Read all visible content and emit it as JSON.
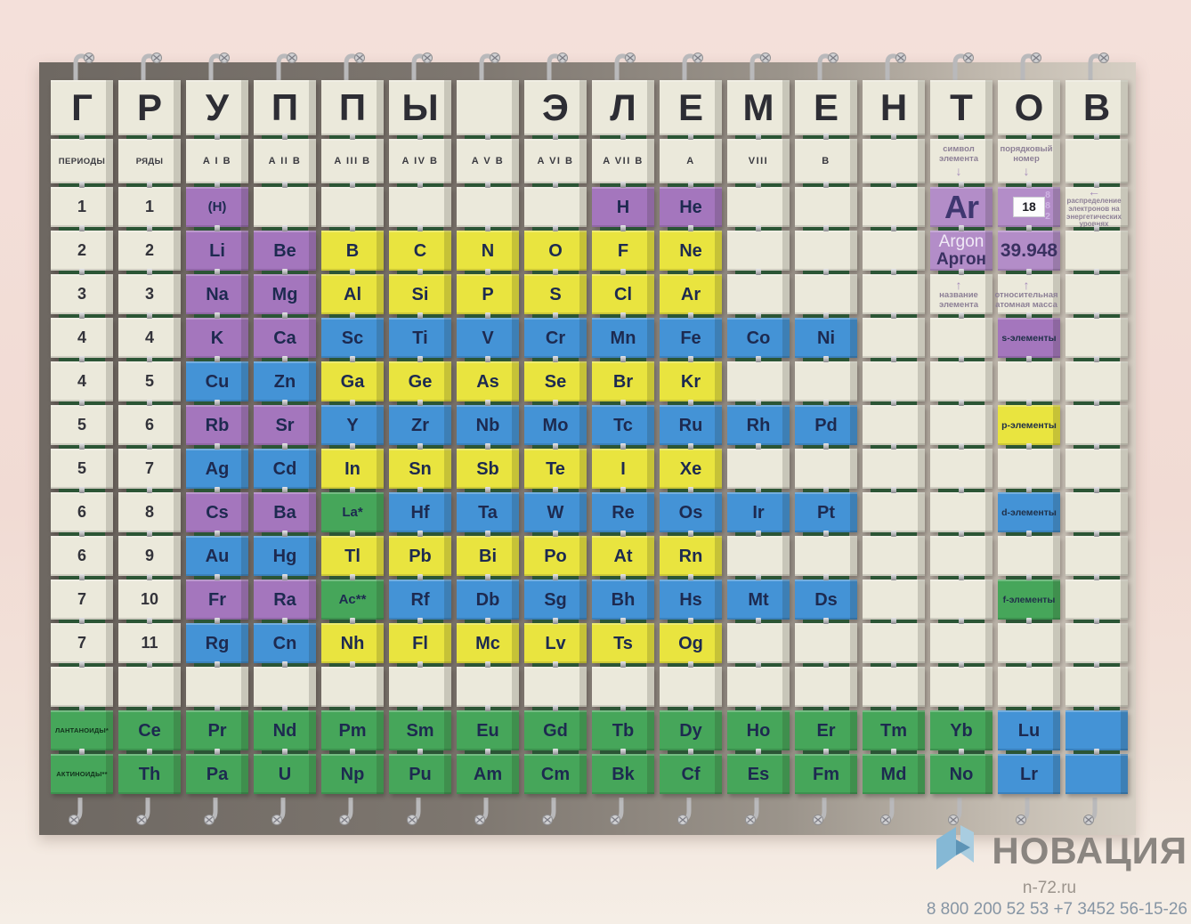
{
  "colors": {
    "c": "#ebe9db",
    "s": "#a476bd",
    "sl": "#b38dc8",
    "p": "#e9e43f",
    "d": "#4493d6",
    "f": "#46a65a"
  },
  "board": {
    "letters": [
      "Г",
      "Р",
      "У",
      "П",
      "П",
      "Ы",
      "",
      "Э",
      "Л",
      "Е",
      "М",
      "Е",
      "Н",
      "Т",
      "О",
      "В"
    ],
    "header_row": [
      [
        "ПЕРИОДЫ",
        "c",
        "hdr"
      ],
      [
        "РЯДЫ",
        "c",
        "hdr"
      ],
      [
        "A I B",
        "c",
        "hdr"
      ],
      [
        "A II B",
        "c",
        "hdr"
      ],
      [
        "A III B",
        "c",
        "hdr"
      ],
      [
        "A IV B",
        "c",
        "hdr"
      ],
      [
        "A V B",
        "c",
        "hdr"
      ],
      [
        "A VI B",
        "c",
        "hdr"
      ],
      [
        "A VII B",
        "c",
        "hdr"
      ],
      [
        "A",
        "c",
        "hdr"
      ],
      [
        "VIII",
        "c",
        "hdr"
      ],
      [
        "B",
        "c",
        "hdr"
      ],
      [
        "",
        "c",
        ""
      ],
      [
        "символ элемента",
        "c",
        "ld"
      ],
      [
        "порядковый номер",
        "c",
        "ld"
      ],
      [
        "",
        "c",
        ""
      ]
    ],
    "rows": [
      [
        [
          "1",
          "c",
          "num"
        ],
        [
          "1",
          "c",
          "num"
        ],
        [
          "(H)",
          "s",
          "sym"
        ],
        [
          "",
          "c",
          ""
        ],
        [
          "",
          "c",
          ""
        ],
        [
          "",
          "c",
          ""
        ],
        [
          "",
          "c",
          ""
        ],
        [
          "",
          "c",
          ""
        ],
        [
          "H",
          "s",
          "sym"
        ],
        [
          "He",
          "s",
          "sym"
        ],
        [
          "",
          "c",
          ""
        ],
        [
          "",
          "c",
          ""
        ],
        [
          "",
          "c",
          ""
        ],
        [
          "Ar",
          "sl",
          "ar"
        ],
        [
          "18",
          "sl",
          "a18"
        ],
        [
          "распределение электронов на энергетических уровнях",
          "c",
          "ll"
        ]
      ],
      [
        [
          "2",
          "c",
          "num"
        ],
        [
          "2",
          "c",
          "num"
        ],
        [
          "Li",
          "s",
          "sym"
        ],
        [
          "Be",
          "s",
          "sym"
        ],
        [
          "B",
          "p",
          "sym"
        ],
        [
          "C",
          "p",
          "sym"
        ],
        [
          "N",
          "p",
          "sym"
        ],
        [
          "O",
          "p",
          "sym"
        ],
        [
          "F",
          "p",
          "sym"
        ],
        [
          "Ne",
          "p",
          "sym"
        ],
        [
          "",
          "c",
          ""
        ],
        [
          "",
          "c",
          ""
        ],
        [
          "",
          "c",
          ""
        ],
        [
          "Argon\nАргон",
          "sl",
          "an"
        ],
        [
          "39.948",
          "sl",
          "am"
        ],
        [
          "",
          "c",
          ""
        ]
      ],
      [
        [
          "3",
          "c",
          "num"
        ],
        [
          "3",
          "c",
          "num"
        ],
        [
          "Na",
          "s",
          "sym"
        ],
        [
          "Mg",
          "s",
          "sym"
        ],
        [
          "Al",
          "p",
          "sym"
        ],
        [
          "Si",
          "p",
          "sym"
        ],
        [
          "P",
          "p",
          "sym"
        ],
        [
          "S",
          "p",
          "sym"
        ],
        [
          "Cl",
          "p",
          "sym"
        ],
        [
          "Ar",
          "p",
          "sym"
        ],
        [
          "",
          "c",
          ""
        ],
        [
          "",
          "c",
          ""
        ],
        [
          "",
          "c",
          ""
        ],
        [
          "название элемента",
          "c",
          "lu"
        ],
        [
          "относительная атомная масса",
          "c",
          "lu"
        ],
        [
          "",
          "c",
          ""
        ]
      ],
      [
        [
          "4",
          "c",
          "num"
        ],
        [
          "4",
          "c",
          "num"
        ],
        [
          "K",
          "s",
          "sym"
        ],
        [
          "Ca",
          "s",
          "sym"
        ],
        [
          "Sc",
          "d",
          "sym"
        ],
        [
          "Ti",
          "d",
          "sym"
        ],
        [
          "V",
          "d",
          "sym"
        ],
        [
          "Cr",
          "d",
          "sym"
        ],
        [
          "Mn",
          "d",
          "sym"
        ],
        [
          "Fe",
          "d",
          "sym"
        ],
        [
          "Co",
          "d",
          "sym"
        ],
        [
          "Ni",
          "d",
          "sym"
        ],
        [
          "",
          "c",
          ""
        ],
        [
          "",
          "c",
          ""
        ],
        [
          "s-элементы",
          "s",
          "cat"
        ],
        [
          "",
          "c",
          ""
        ]
      ],
      [
        [
          "4",
          "c",
          "num"
        ],
        [
          "5",
          "c",
          "num"
        ],
        [
          "Cu",
          "d",
          "sym"
        ],
        [
          "Zn",
          "d",
          "sym"
        ],
        [
          "Ga",
          "p",
          "sym"
        ],
        [
          "Ge",
          "p",
          "sym"
        ],
        [
          "As",
          "p",
          "sym"
        ],
        [
          "Se",
          "p",
          "sym"
        ],
        [
          "Br",
          "p",
          "sym"
        ],
        [
          "Kr",
          "p",
          "sym"
        ],
        [
          "",
          "c",
          ""
        ],
        [
          "",
          "c",
          ""
        ],
        [
          "",
          "c",
          ""
        ],
        [
          "",
          "c",
          ""
        ],
        [
          "",
          "c",
          ""
        ],
        [
          "",
          "c",
          ""
        ]
      ],
      [
        [
          "5",
          "c",
          "num"
        ],
        [
          "6",
          "c",
          "num"
        ],
        [
          "Rb",
          "s",
          "sym"
        ],
        [
          "Sr",
          "s",
          "sym"
        ],
        [
          "Y",
          "d",
          "sym"
        ],
        [
          "Zr",
          "d",
          "sym"
        ],
        [
          "Nb",
          "d",
          "sym"
        ],
        [
          "Mo",
          "d",
          "sym"
        ],
        [
          "Tc",
          "d",
          "sym"
        ],
        [
          "Ru",
          "d",
          "sym"
        ],
        [
          "Rh",
          "d",
          "sym"
        ],
        [
          "Pd",
          "d",
          "sym"
        ],
        [
          "",
          "c",
          ""
        ],
        [
          "",
          "c",
          ""
        ],
        [
          "p-элементы",
          "p",
          "cat"
        ],
        [
          "",
          "c",
          ""
        ]
      ],
      [
        [
          "5",
          "c",
          "num"
        ],
        [
          "7",
          "c",
          "num"
        ],
        [
          "Ag",
          "d",
          "sym"
        ],
        [
          "Cd",
          "d",
          "sym"
        ],
        [
          "In",
          "p",
          "sym"
        ],
        [
          "Sn",
          "p",
          "sym"
        ],
        [
          "Sb",
          "p",
          "sym"
        ],
        [
          "Te",
          "p",
          "sym"
        ],
        [
          "I",
          "p",
          "sym"
        ],
        [
          "Xe",
          "p",
          "sym"
        ],
        [
          "",
          "c",
          ""
        ],
        [
          "",
          "c",
          ""
        ],
        [
          "",
          "c",
          ""
        ],
        [
          "",
          "c",
          ""
        ],
        [
          "",
          "c",
          ""
        ],
        [
          "",
          "c",
          ""
        ]
      ],
      [
        [
          "6",
          "c",
          "num"
        ],
        [
          "8",
          "c",
          "num"
        ],
        [
          "Cs",
          "s",
          "sym"
        ],
        [
          "Ba",
          "s",
          "sym"
        ],
        [
          "La*",
          "f",
          "sym"
        ],
        [
          "Hf",
          "d",
          "sym"
        ],
        [
          "Ta",
          "d",
          "sym"
        ],
        [
          "W",
          "d",
          "sym"
        ],
        [
          "Re",
          "d",
          "sym"
        ],
        [
          "Os",
          "d",
          "sym"
        ],
        [
          "Ir",
          "d",
          "sym"
        ],
        [
          "Pt",
          "d",
          "sym"
        ],
        [
          "",
          "c",
          ""
        ],
        [
          "",
          "c",
          ""
        ],
        [
          "d-элементы",
          "d",
          "cat"
        ],
        [
          "",
          "c",
          ""
        ]
      ],
      [
        [
          "6",
          "c",
          "num"
        ],
        [
          "9",
          "c",
          "num"
        ],
        [
          "Au",
          "d",
          "sym"
        ],
        [
          "Hg",
          "d",
          "sym"
        ],
        [
          "Tl",
          "p",
          "sym"
        ],
        [
          "Pb",
          "p",
          "sym"
        ],
        [
          "Bi",
          "p",
          "sym"
        ],
        [
          "Po",
          "p",
          "sym"
        ],
        [
          "At",
          "p",
          "sym"
        ],
        [
          "Rn",
          "p",
          "sym"
        ],
        [
          "",
          "c",
          ""
        ],
        [
          "",
          "c",
          ""
        ],
        [
          "",
          "c",
          ""
        ],
        [
          "",
          "c",
          ""
        ],
        [
          "",
          "c",
          ""
        ],
        [
          "",
          "c",
          ""
        ]
      ],
      [
        [
          "7",
          "c",
          "num"
        ],
        [
          "10",
          "c",
          "num"
        ],
        [
          "Fr",
          "s",
          "sym"
        ],
        [
          "Ra",
          "s",
          "sym"
        ],
        [
          "Ac**",
          "f",
          "sym"
        ],
        [
          "Rf",
          "d",
          "sym"
        ],
        [
          "Db",
          "d",
          "sym"
        ],
        [
          "Sg",
          "d",
          "sym"
        ],
        [
          "Bh",
          "d",
          "sym"
        ],
        [
          "Hs",
          "d",
          "sym"
        ],
        [
          "Mt",
          "d",
          "sym"
        ],
        [
          "Ds",
          "d",
          "sym"
        ],
        [
          "",
          "c",
          ""
        ],
        [
          "",
          "c",
          ""
        ],
        [
          "f-элементы",
          "f",
          "cat"
        ],
        [
          "",
          "c",
          ""
        ]
      ],
      [
        [
          "7",
          "c",
          "num"
        ],
        [
          "11",
          "c",
          "num"
        ],
        [
          "Rg",
          "d",
          "sym"
        ],
        [
          "Cn",
          "d",
          "sym"
        ],
        [
          "Nh",
          "p",
          "sym"
        ],
        [
          "Fl",
          "p",
          "sym"
        ],
        [
          "Mc",
          "p",
          "sym"
        ],
        [
          "Lv",
          "p",
          "sym"
        ],
        [
          "Ts",
          "p",
          "sym"
        ],
        [
          "Og",
          "p",
          "sym"
        ],
        [
          "",
          "c",
          ""
        ],
        [
          "",
          "c",
          ""
        ],
        [
          "",
          "c",
          ""
        ],
        [
          "",
          "c",
          ""
        ],
        [
          "",
          "c",
          ""
        ],
        [
          "",
          "c",
          ""
        ]
      ],
      [
        [
          "",
          "c",
          ""
        ],
        [
          "",
          "c",
          ""
        ],
        [
          "",
          "c",
          ""
        ],
        [
          "",
          "c",
          ""
        ],
        [
          "",
          "c",
          ""
        ],
        [
          "",
          "c",
          ""
        ],
        [
          "",
          "c",
          ""
        ],
        [
          "",
          "c",
          ""
        ],
        [
          "",
          "c",
          ""
        ],
        [
          "",
          "c",
          ""
        ],
        [
          "",
          "c",
          ""
        ],
        [
          "",
          "c",
          ""
        ],
        [
          "",
          "c",
          ""
        ],
        [
          "",
          "c",
          ""
        ],
        [
          "",
          "c",
          ""
        ],
        [
          "",
          "c",
          ""
        ]
      ],
      [
        [
          "ЛАНТАНОИДЫ*",
          "f",
          "lab"
        ],
        [
          "Ce",
          "f",
          "sym"
        ],
        [
          "Pr",
          "f",
          "sym"
        ],
        [
          "Nd",
          "f",
          "sym"
        ],
        [
          "Pm",
          "f",
          "sym"
        ],
        [
          "Sm",
          "f",
          "sym"
        ],
        [
          "Eu",
          "f",
          "sym"
        ],
        [
          "Gd",
          "f",
          "sym"
        ],
        [
          "Tb",
          "f",
          "sym"
        ],
        [
          "Dy",
          "f",
          "sym"
        ],
        [
          "Ho",
          "f",
          "sym"
        ],
        [
          "Er",
          "f",
          "sym"
        ],
        [
          "Tm",
          "f",
          "sym"
        ],
        [
          "Yb",
          "f",
          "sym"
        ],
        [
          "Lu",
          "d",
          "sym"
        ],
        [
          "",
          "d",
          ""
        ]
      ],
      [
        [
          "АКТИНОИДЫ**",
          "f",
          "lab"
        ],
        [
          "Th",
          "f",
          "sym"
        ],
        [
          "Pa",
          "f",
          "sym"
        ],
        [
          "U",
          "f",
          "sym"
        ],
        [
          "Np",
          "f",
          "sym"
        ],
        [
          "Pu",
          "f",
          "sym"
        ],
        [
          "Am",
          "f",
          "sym"
        ],
        [
          "Cm",
          "f",
          "sym"
        ],
        [
          "Bk",
          "f",
          "sym"
        ],
        [
          "Cf",
          "f",
          "sym"
        ],
        [
          "Es",
          "f",
          "sym"
        ],
        [
          "Fm",
          "f",
          "sym"
        ],
        [
          "Md",
          "f",
          "sym"
        ],
        [
          "No",
          "f",
          "sym"
        ],
        [
          "Lr",
          "d",
          "sym"
        ],
        [
          "",
          "d",
          ""
        ]
      ]
    ]
  },
  "legend": {
    "sample_symbol": "Ar",
    "sample_number": "18",
    "sample_shells": [
      "8",
      "8",
      "2"
    ],
    "sample_name": "Argon\nАргон",
    "sample_mass": "39.948",
    "symbol_label": "символ элемента",
    "number_label": "порядковый номер",
    "name_label": "название элемента",
    "mass_label": "относительная атомная масса",
    "distribution_label": "распределение электронов на энергетических уровнях"
  },
  "watermark": {
    "brand": "НОВАЦИЯ",
    "site": "n-72.ru",
    "phone": "8 800 200 52 53 +7 3452 56-15-26"
  }
}
